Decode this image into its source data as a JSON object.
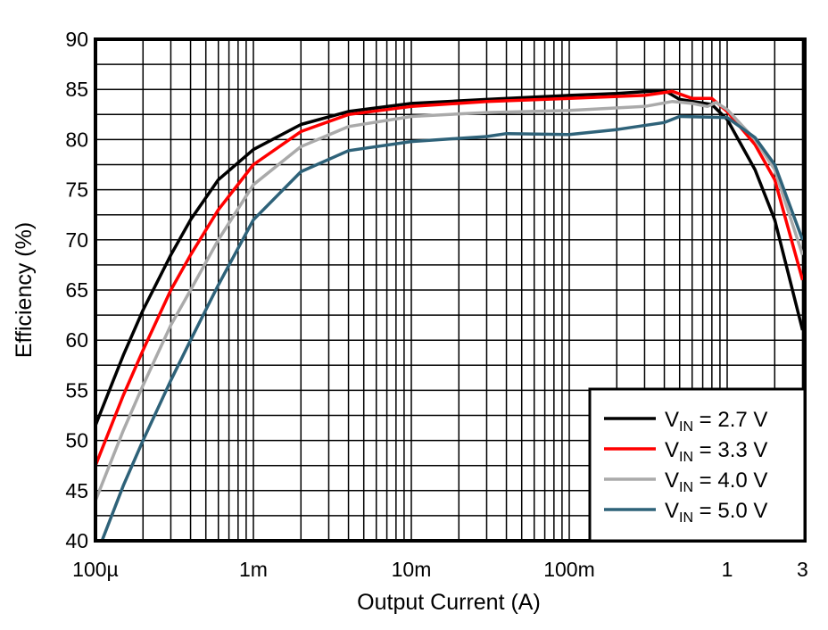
{
  "chart_data": {
    "type": "line",
    "xlabel": "Output Current (A)",
    "ylabel": "Efficiency (%)",
    "xscale": "log",
    "xlim": [
      0.0001,
      3
    ],
    "ylim": [
      40,
      90
    ],
    "x_ticks": [
      {
        "value": 0.0001,
        "label": "100µ"
      },
      {
        "value": 0.001,
        "label": "1m"
      },
      {
        "value": 0.01,
        "label": "10m"
      },
      {
        "value": 0.1,
        "label": "100m"
      },
      {
        "value": 1,
        "label": "1"
      },
      {
        "value": 3,
        "label": "3"
      }
    ],
    "y_ticks": [
      {
        "value": 40,
        "label": "40"
      },
      {
        "value": 45,
        "label": "45"
      },
      {
        "value": 50,
        "label": "50"
      },
      {
        "value": 55,
        "label": "55"
      },
      {
        "value": 60,
        "label": "60"
      },
      {
        "value": 65,
        "label": "65"
      },
      {
        "value": 70,
        "label": "70"
      },
      {
        "value": 75,
        "label": "75"
      },
      {
        "value": 80,
        "label": "80"
      },
      {
        "value": 85,
        "label": "85"
      },
      {
        "value": 90,
        "label": "90"
      }
    ],
    "grid": true,
    "legend_position": "bottom-right",
    "series": [
      {
        "name": "VIN = 2.7 V",
        "name_main": "V",
        "name_sub": "IN",
        "name_rest": " = 2.7 V",
        "color": "#000000",
        "x": [
          0.0001,
          0.00015,
          0.0002,
          0.0003,
          0.0004,
          0.0006,
          0.001,
          0.002,
          0.004,
          0.01,
          0.03,
          0.1,
          0.2,
          0.4,
          0.5,
          0.8,
          1,
          1.5,
          2,
          3
        ],
        "y": [
          51.5,
          58.5,
          63,
          68.5,
          72,
          76,
          79,
          81.5,
          82.8,
          83.6,
          84,
          84.4,
          84.6,
          84.9,
          84,
          83.5,
          82,
          77,
          72,
          61
        ]
      },
      {
        "name": "VIN = 3.3 V",
        "name_main": "V",
        "name_sub": "IN",
        "name_rest": " = 3.3 V",
        "color": "#ff0000",
        "x": [
          0.0001,
          0.00015,
          0.0002,
          0.0003,
          0.0004,
          0.0006,
          0.001,
          0.002,
          0.004,
          0.01,
          0.03,
          0.1,
          0.3,
          0.45,
          0.6,
          0.8,
          1,
          1.5,
          2,
          3
        ],
        "y": [
          47.5,
          54.5,
          59,
          65,
          68.5,
          73,
          77.5,
          80.8,
          82.5,
          83.3,
          83.8,
          84.1,
          84.4,
          84.8,
          84.1,
          84.1,
          82.8,
          79.5,
          76,
          66
        ]
      },
      {
        "name": "VIN = 4.0 V",
        "name_main": "V",
        "name_sub": "IN",
        "name_rest": " = 4.0 V",
        "color": "#aaaaaa",
        "x": [
          0.0001,
          0.00015,
          0.0002,
          0.0003,
          0.0004,
          0.0006,
          0.001,
          0.002,
          0.004,
          0.01,
          0.03,
          0.1,
          0.3,
          0.45,
          0.6,
          0.75,
          0.85,
          1,
          1.5,
          2,
          3
        ],
        "y": [
          44,
          51,
          55.5,
          61.5,
          65,
          70,
          75.5,
          79.3,
          81.3,
          82.3,
          82.7,
          82.9,
          83.3,
          83.8,
          83.6,
          83.3,
          83.7,
          83,
          80,
          77,
          68.5
        ]
      },
      {
        "name": "VIN = 5.0 V",
        "name_main": "V",
        "name_sub": "IN",
        "name_rest": " = 5.0 V",
        "color": "#2e6279",
        "x": [
          0.00011,
          0.00015,
          0.0002,
          0.0003,
          0.0004,
          0.0006,
          0.001,
          0.002,
          0.004,
          0.01,
          0.03,
          0.04,
          0.1,
          0.2,
          0.4,
          0.5,
          1,
          1.5,
          2,
          3
        ],
        "y": [
          40,
          45.5,
          50,
          56,
          60,
          65.5,
          72,
          76.8,
          78.9,
          79.8,
          80.3,
          80.6,
          80.5,
          81,
          81.7,
          82.3,
          82.2,
          80.2,
          77.5,
          70
        ]
      }
    ]
  }
}
